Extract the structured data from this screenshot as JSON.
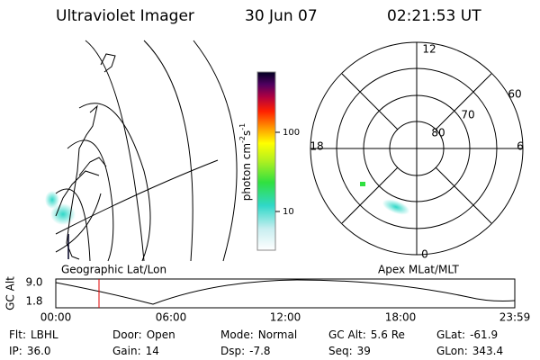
{
  "header": {
    "title": "Ultraviolet Imager",
    "date": "30 Jun 07",
    "time": "02:21:53 UT"
  },
  "colorbar": {
    "unit": {
      "base": "photon cm",
      "exp1": "-2",
      "mid": "s",
      "exp2": "-1"
    },
    "ticks": [
      "100",
      "10"
    ]
  },
  "polar": {
    "lat_labels": [
      "60",
      "70",
      "80"
    ],
    "mlt_labels": {
      "top": "12",
      "left": "18",
      "right": "6",
      "bottom": "0"
    }
  },
  "panels": {
    "left": "Geographic Lat/Lon",
    "right": "Apex MLat/MLT"
  },
  "altitude": {
    "axis_label": "GC Alt",
    "yticks": [
      "9.0",
      "1.8"
    ],
    "xticks": [
      "00:00",
      "06:00",
      "12:00",
      "18:00",
      "23:59"
    ]
  },
  "info": [
    [
      {
        "label": "Flt:",
        "value": "LBHL"
      },
      {
        "label": "Door:",
        "value": "Open"
      },
      {
        "label": "Mode:",
        "value": "Normal"
      },
      {
        "label": "GC Alt:",
        "value": "5.6 Re"
      },
      {
        "label": "GLat:",
        "value": "-61.9"
      }
    ],
    [
      {
        "label": "IP:",
        "value": "36.0"
      },
      {
        "label": "Gain:",
        "value": "14"
      },
      {
        "label": "Dsp:",
        "value": "-7.8"
      },
      {
        "label": "Seq:",
        "value": "39"
      },
      {
        "label": "GLon:",
        "value": "343.4"
      }
    ]
  ]
}
